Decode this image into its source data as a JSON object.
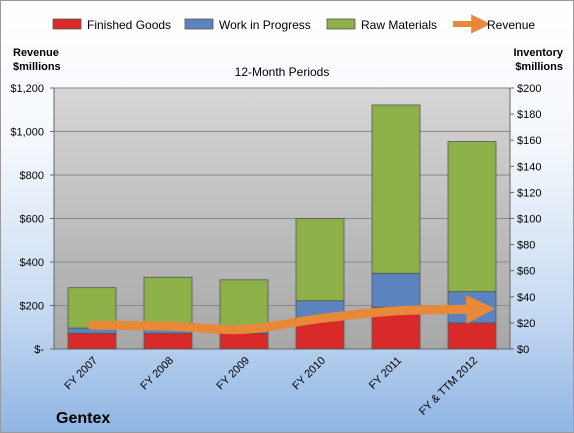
{
  "chart_data": {
    "type": "bar",
    "stacked": true,
    "title": "12-Month Periods",
    "company": "Gentex",
    "categories": [
      "FY 2007",
      "FY 2008",
      "FY 2009",
      "FY 2010",
      "FY 2011",
      "FY & TTM 2012"
    ],
    "y_left": {
      "label": [
        "Revenue",
        "$millions"
      ],
      "min": 0,
      "max": 1200,
      "step": 200,
      "tick_labels": [
        "$-",
        "$200",
        "$400",
        "$600",
        "$800",
        "$1,000",
        "$1,200"
      ]
    },
    "y_right": {
      "label": [
        "Inventory",
        "$millions"
      ],
      "min": 0,
      "max": 200,
      "step": 20,
      "tick_labels": [
        "$0",
        "$20",
        "$40",
        "$60",
        "$80",
        "$100",
        "$120",
        "$140",
        "$160",
        "$180",
        "$200"
      ]
    },
    "series": [
      {
        "name": "Finished Goods",
        "axis": "right",
        "color": "#d92a2a",
        "values": [
          12,
          12,
          12,
          24,
          32,
          20
        ]
      },
      {
        "name": "Work in Progress",
        "axis": "right",
        "color": "#5b84bf",
        "values": [
          4,
          5,
          6,
          13,
          26,
          24
        ]
      },
      {
        "name": "Raw Materials",
        "axis": "right",
        "color": "#8db048",
        "values": [
          31,
          38,
          35,
          63,
          129,
          115
        ]
      },
      {
        "name": "Revenue",
        "axis": "left",
        "type": "line",
        "color": "#e8893a",
        "values": [
          110,
          105,
          90,
          140,
          175,
          183
        ]
      }
    ],
    "grid": true,
    "legend_position": "top"
  }
}
